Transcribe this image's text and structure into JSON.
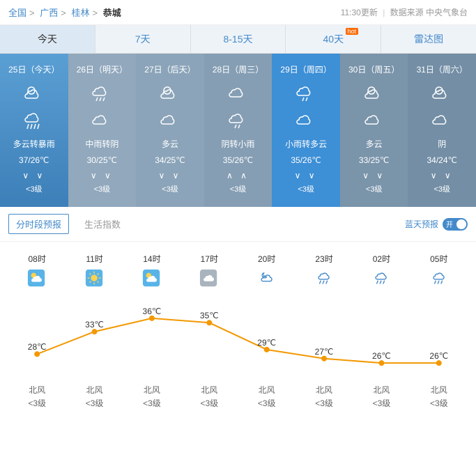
{
  "breadcrumb": {
    "l0": "全国",
    "l1": "广西",
    "l2": "桂林",
    "l3": "恭城",
    "update": "11:30更新",
    "source": "数据来源 中央气象台"
  },
  "tabs": [
    {
      "label": "今天",
      "active": true
    },
    {
      "label": "7天"
    },
    {
      "label": "8-15天"
    },
    {
      "label": "40天",
      "hot": "hot"
    },
    {
      "label": "雷达图"
    }
  ],
  "days": [
    {
      "date": "25日（今天）",
      "cond": "多云转暴雨",
      "temp": "37/26℃",
      "arrows": "∨ ∨",
      "wind": "<3级",
      "icon1": "cloud-sun",
      "icon2": "rain-heavy",
      "bg": "#f0f5fa",
      "sel": true
    },
    {
      "date": "26日（明天）",
      "cond": "中雨转阴",
      "temp": "30/25℃",
      "arrows": "∨ ∨",
      "wind": "<3级",
      "icon1": "rain",
      "icon2": "cloudy",
      "bg": "#91a8bd"
    },
    {
      "date": "27日（后天）",
      "cond": "多云",
      "temp": "34/25℃",
      "arrows": "∨ ∨",
      "wind": "<3级",
      "icon1": "cloud-sun",
      "icon2": "cloudy",
      "bg": "#8ba4b9"
    },
    {
      "date": "28日（周三）",
      "cond": "阴转小雨",
      "temp": "35/26℃",
      "arrows": "∧ ∧",
      "wind": "<3级",
      "icon1": "cloudy",
      "icon2": "rain-light",
      "bg": "#859eb4"
    },
    {
      "date": "29日（周四）",
      "cond": "小雨转多云",
      "temp": "35/26℃",
      "arrows": "∨ ∨",
      "wind": "<3级",
      "icon1": "rain-light",
      "icon2": "cloudy",
      "bg": "#3d8fd6"
    },
    {
      "date": "30日（周五）",
      "cond": "多云",
      "temp": "33/25℃",
      "arrows": "∨ ∨",
      "wind": "<3级",
      "icon1": "cloud-sun",
      "icon2": "cloudy",
      "bg": "#7a94aa"
    },
    {
      "date": "31日（周六）",
      "cond": "阴",
      "temp": "34/24℃",
      "arrows": "∨ ∨",
      "wind": "<3级",
      "icon1": "cloud-sun",
      "icon2": "cloudy",
      "bg": "#738ea5"
    }
  ],
  "subtabs": {
    "t0": "分时段预报",
    "t1": "生活指数",
    "blue": "蓝天预报",
    "toggle": "开"
  },
  "hourly": {
    "times": [
      "08时",
      "11时",
      "14时",
      "17时",
      "20时",
      "23时",
      "02时",
      "05时"
    ],
    "icons": [
      "cloud-sun-s",
      "sun",
      "cloud-sun-s",
      "cloudy-grey",
      "cloud-moon",
      "rain",
      "rain",
      "rain"
    ],
    "temps": [
      28,
      33,
      36,
      35,
      29,
      27,
      26,
      26
    ],
    "dir": "北风",
    "level": "<3级",
    "line_color": "#f39800",
    "dot_color": "#f39800",
    "ymin": 24,
    "ymax": 38
  }
}
